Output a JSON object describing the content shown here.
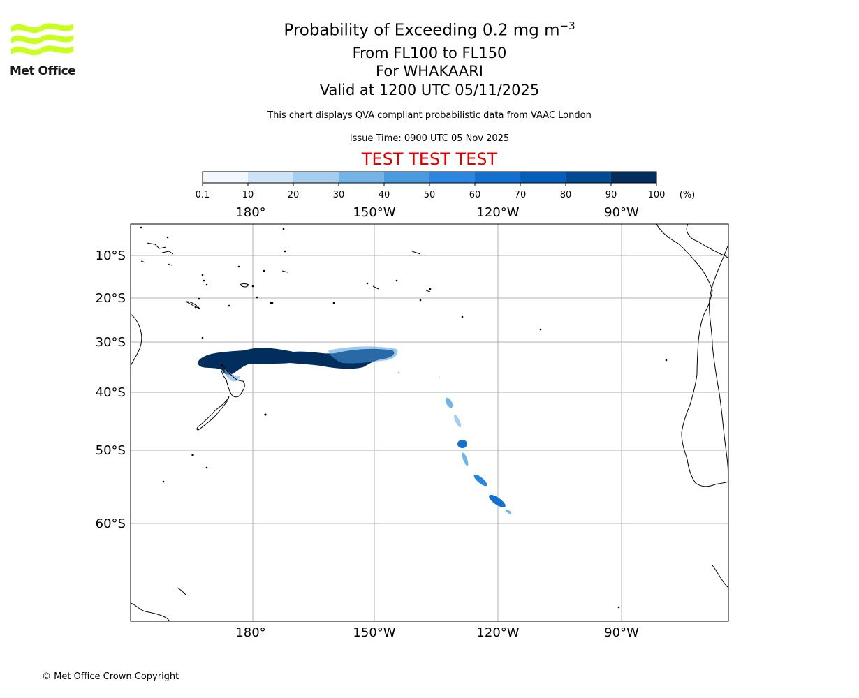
{
  "header": {
    "title_main": "Probability of Exceeding 0.2 mg m",
    "title_main_exponent": "−3",
    "flight_levels": "From FL100 to FL150",
    "volcano": "For WHAKAARI",
    "valid_time": "Valid at 1200 UTC 05/11/2025",
    "info": "This chart displays QVA compliant probabilistic data from VAAC London",
    "issue_time": "Issue Time: 0900 UTC 05 Nov 2025",
    "test_banner": "TEST TEST TEST",
    "test_banner_color": "#e00000"
  },
  "logo": {
    "text": "Met Office",
    "wave_color": "#c8ff1e"
  },
  "colorbar": {
    "ticks": [
      "0.1",
      "10",
      "20",
      "30",
      "40",
      "50",
      "60",
      "70",
      "80",
      "90",
      "100"
    ],
    "unit": "(%)",
    "colors": [
      "#f1f7fd",
      "#cfe3f7",
      "#a5cdef",
      "#74b3e6",
      "#4a9ae2",
      "#2a86e0",
      "#1270d0",
      "#055fb8",
      "#034a94",
      "#022e5e"
    ]
  },
  "map": {
    "lon_labels": [
      "180°",
      "150°W",
      "120°W",
      "90°W"
    ],
    "lat_labels": [
      "10°S",
      "20°S",
      "30°S",
      "40°S",
      "50°S",
      "60°S"
    ],
    "gridline_color": "#b0b0b0"
  },
  "footer": {
    "copyright": "© Met Office Crown Copyright"
  }
}
